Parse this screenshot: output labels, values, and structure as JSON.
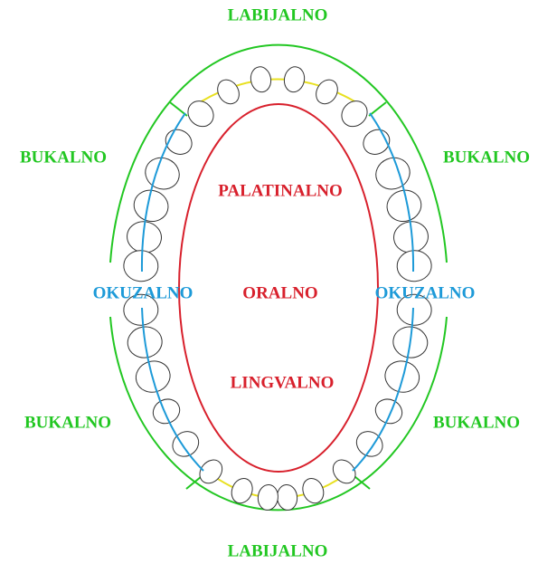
{
  "labels": {
    "top": "LABIJALNO",
    "bottom": "LABIJALNO",
    "upper_left": "BUKALNO",
    "upper_right": "BUKALNO",
    "lower_left": "BUKALNO",
    "lower_right": "BUKALNO",
    "occlusal_left": "OKUZALNO",
    "occlusal_right": "OKUZALNO",
    "palatal": "PALATINALNO",
    "oral": "ORALNO",
    "lingual": "LINGVALNO"
  }
}
